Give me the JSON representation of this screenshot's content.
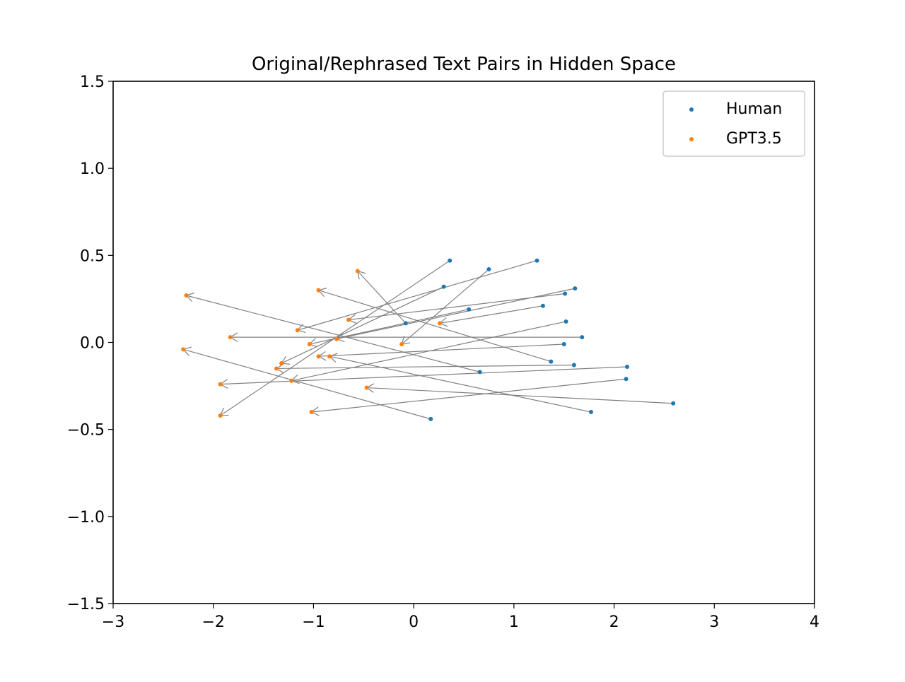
{
  "chart_data": {
    "type": "scatter",
    "title": "Original/Rephrased Text Pairs in Hidden Space",
    "xlabel": "",
    "ylabel": "",
    "xlim": [
      -3,
      4
    ],
    "ylim": [
      -1.5,
      1.5
    ],
    "xticks": [
      -3,
      -2,
      -1,
      0,
      1,
      2,
      3,
      4
    ],
    "xtick_labels": [
      "−3",
      "−2",
      "−1",
      "0",
      "1",
      "2",
      "3",
      "4"
    ],
    "yticks": [
      1.5,
      1.0,
      0.5,
      0.0,
      -0.5,
      -1.0,
      -1.5
    ],
    "ytick_labels": [
      "1.5",
      "1.0",
      "0.5",
      "0.0",
      "−0.5",
      "−1.0",
      "−1.5"
    ],
    "grid": false,
    "legend_position": "top-right",
    "series": [
      {
        "name": "Human",
        "color": "#1f77b4",
        "points": [
          [
            0.36,
            0.47
          ],
          [
            0.75,
            0.42
          ],
          [
            1.23,
            0.47
          ],
          [
            0.3,
            0.32
          ],
          [
            1.61,
            0.31
          ],
          [
            1.51,
            0.28
          ],
          [
            0.55,
            0.19
          ],
          [
            1.29,
            0.21
          ],
          [
            -0.08,
            0.11
          ],
          [
            1.52,
            0.12
          ],
          [
            1.68,
            0.03
          ],
          [
            1.5,
            -0.01
          ],
          [
            1.37,
            -0.11
          ],
          [
            1.6,
            -0.13
          ],
          [
            0.66,
            -0.17
          ],
          [
            2.13,
            -0.14
          ],
          [
            2.12,
            -0.21
          ],
          [
            2.59,
            -0.35
          ],
          [
            1.77,
            -0.4
          ],
          [
            0.17,
            -0.44
          ]
        ]
      },
      {
        "name": "GPT3.5",
        "color": "#ff7f0e",
        "points": [
          [
            -0.56,
            0.41
          ],
          [
            -0.95,
            0.3
          ],
          [
            -2.27,
            0.27
          ],
          [
            -0.65,
            0.13
          ],
          [
            -1.16,
            0.07
          ],
          [
            0.26,
            0.11
          ],
          [
            -1.83,
            0.03
          ],
          [
            -0.77,
            0.02
          ],
          [
            -1.04,
            -0.01
          ],
          [
            -0.12,
            -0.01
          ],
          [
            -2.3,
            -0.04
          ],
          [
            -0.95,
            -0.08
          ],
          [
            -0.84,
            -0.08
          ],
          [
            -1.32,
            -0.12
          ],
          [
            -1.37,
            -0.15
          ],
          [
            -1.22,
            -0.22
          ],
          [
            -1.93,
            -0.24
          ],
          [
            -0.47,
            -0.26
          ],
          [
            -1.93,
            -0.42
          ],
          [
            -1.02,
            -0.4
          ]
        ]
      }
    ],
    "pairs": [
      {
        "from": [
          0.36,
          0.47
        ],
        "to": [
          -1.93,
          -0.42
        ]
      },
      {
        "from": [
          0.75,
          0.42
        ],
        "to": [
          -0.12,
          -0.01
        ]
      },
      {
        "from": [
          1.23,
          0.47
        ],
        "to": [
          -1.16,
          0.07
        ]
      },
      {
        "from": [
          0.3,
          0.32
        ],
        "to": [
          -1.32,
          -0.12
        ]
      },
      {
        "from": [
          1.61,
          0.31
        ],
        "to": [
          -0.77,
          0.02
        ]
      },
      {
        "from": [
          1.51,
          0.28
        ],
        "to": [
          -0.65,
          0.13
        ]
      },
      {
        "from": [
          0.55,
          0.19
        ],
        "to": [
          -1.04,
          -0.01
        ]
      },
      {
        "from": [
          1.29,
          0.21
        ],
        "to": [
          0.26,
          0.11
        ]
      },
      {
        "from": [
          -0.08,
          0.11
        ],
        "to": [
          -0.56,
          0.41
        ]
      },
      {
        "from": [
          1.52,
          0.12
        ],
        "to": [
          -1.22,
          -0.22
        ]
      },
      {
        "from": [
          1.68,
          0.03
        ],
        "to": [
          -1.83,
          0.03
        ]
      },
      {
        "from": [
          1.5,
          -0.01
        ],
        "to": [
          -0.95,
          -0.08
        ]
      },
      {
        "from": [
          1.37,
          -0.11
        ],
        "to": [
          -0.95,
          0.3
        ]
      },
      {
        "from": [
          1.6,
          -0.13
        ],
        "to": [
          -1.37,
          -0.15
        ]
      },
      {
        "from": [
          0.66,
          -0.17
        ],
        "to": [
          -2.27,
          0.27
        ]
      },
      {
        "from": [
          2.13,
          -0.14
        ],
        "to": [
          -1.93,
          -0.24
        ]
      },
      {
        "from": [
          2.12,
          -0.21
        ],
        "to": [
          -1.02,
          -0.4
        ]
      },
      {
        "from": [
          2.59,
          -0.35
        ],
        "to": [
          -0.47,
          -0.26
        ]
      },
      {
        "from": [
          1.77,
          -0.4
        ],
        "to": [
          -0.84,
          -0.08
        ]
      },
      {
        "from": [
          0.17,
          -0.44
        ],
        "to": [
          -2.3,
          -0.04
        ]
      }
    ],
    "arrow_color": "#808080",
    "legend": [
      {
        "label": "Human",
        "color": "#1f77b4"
      },
      {
        "label": "GPT3.5",
        "color": "#ff7f0e"
      }
    ]
  }
}
